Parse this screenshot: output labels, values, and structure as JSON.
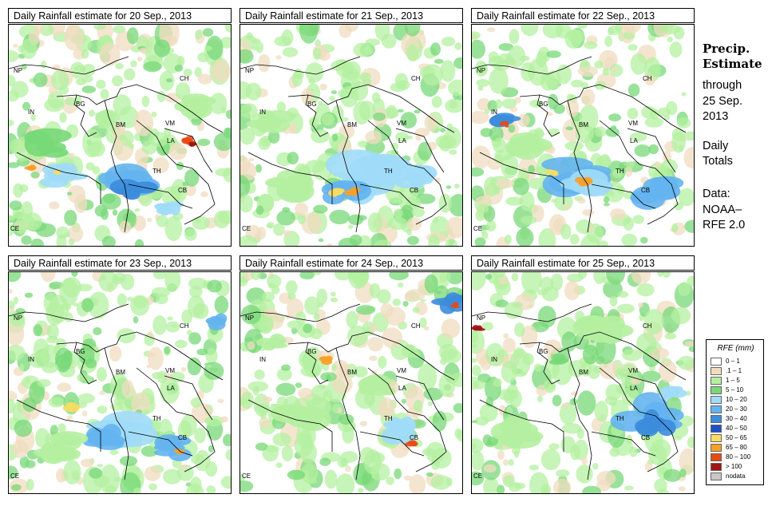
{
  "panels": [
    {
      "title": "Daily Rainfall estimate for  20 Sep., 2013",
      "labels": [
        "NP",
        "CH",
        "IN",
        "BG",
        "BM",
        "VM",
        "LA",
        "TH",
        "CB",
        "CE"
      ]
    },
    {
      "title": "Daily Rainfall estimate for  21 Sep., 2013",
      "labels": [
        "NP",
        "CH",
        "IN",
        "BG",
        "BM",
        "VM",
        "LA",
        "TH",
        "CB",
        "CE"
      ]
    },
    {
      "title": "Daily Rainfall estimate for  22 Sep., 2013",
      "labels": [
        "NP",
        "CH",
        "IN",
        "BG",
        "BM",
        "VM",
        "LA",
        "TH",
        "CB",
        "CE"
      ]
    },
    {
      "title": "Daily Rainfall estimate for  23 Sep., 2013",
      "labels": [
        "NP",
        "CH",
        "IN",
        "BG",
        "BM",
        "VM",
        "LA",
        "TH",
        "CB",
        "CE"
      ]
    },
    {
      "title": "Daily Rainfall estimate for  24 Sep., 2013",
      "labels": [
        "NP",
        "CH",
        "IN",
        "BG",
        "BM",
        "VM",
        "LA",
        "TH",
        "CB",
        "CE"
      ]
    },
    {
      "title": "Daily Rainfall estimate for  25 Sep., 2013",
      "labels": [
        "NP",
        "CH",
        "IN",
        "BG",
        "BM",
        "VM",
        "LA",
        "TH",
        "CB",
        "CE"
      ]
    }
  ],
  "sidebar": {
    "heading_line1": "Precip.",
    "heading_line2": "Estimate",
    "through": "through",
    "date_line1": "25 Sep.",
    "date_line2": "2013",
    "totals_line1": "Daily",
    "totals_line2": "Totals",
    "data_line1": "Data:",
    "data_line2": "NOAA–",
    "data_line3": "RFE 2.0"
  },
  "legend": {
    "title": "RFE (mm)",
    "entries": [
      {
        "label": "0 – 1",
        "color": "#ffffff"
      },
      {
        "label": ".1 – 1",
        "color": "#f0dcc0"
      },
      {
        "label": "1 – 5",
        "color": "#b4f0a0"
      },
      {
        "label": "5 – 10",
        "color": "#78d878"
      },
      {
        "label": "10 – 20",
        "color": "#a0dcf8"
      },
      {
        "label": "20 – 30",
        "color": "#64b4f0"
      },
      {
        "label": "30 – 40",
        "color": "#3c8cdc"
      },
      {
        "label": "40 – 50",
        "color": "#1e50c8"
      },
      {
        "label": "50 – 65",
        "color": "#f8dc64"
      },
      {
        "label": "65 – 80",
        "color": "#f8a028"
      },
      {
        "label": "80 – 100",
        "color": "#e84a14"
      },
      {
        "label": "> 100",
        "color": "#a01414"
      },
      {
        "label": "nodata",
        "color": "#c8c8c8"
      }
    ]
  }
}
